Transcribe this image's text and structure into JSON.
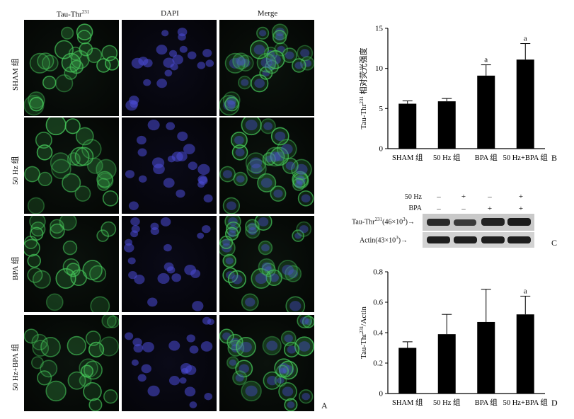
{
  "panel_a": {
    "columns": [
      {
        "main": "Tau-Thr",
        "sup": "231"
      },
      {
        "main": "DAPI",
        "sup": ""
      },
      {
        "main": "Merge",
        "sup": ""
      }
    ],
    "rows": [
      "SHAM 组",
      "50 Hz 组",
      "BPA 组",
      "50 Hz+BPA 组"
    ],
    "letter": "A",
    "stain_colors": {
      "tau": "#46c85a",
      "dapi": "#4a4ad6"
    }
  },
  "panel_c": {
    "letter": "C",
    "factor_rows": [
      {
        "label": "50 Hz",
        "signs": [
          "–",
          "+",
          "–",
          "+"
        ]
      },
      {
        "label": "BPA",
        "signs": [
          "–",
          "–",
          "+",
          "+"
        ]
      }
    ],
    "bands": [
      {
        "main": "Tau-Thr",
        "sup": "231",
        "rest": "(46×10",
        "sup2": "3",
        "end": ")→"
      },
      {
        "main": "Actin(43×10",
        "sup": "3",
        "rest": ")→",
        "sup2": "",
        "end": ""
      }
    ]
  },
  "chart_data": [
    {
      "type": "bar",
      "panel": "B",
      "categories": [
        "SHAM 组",
        "50 Hz 组",
        "BPA 组",
        "50 Hz+BPA 组"
      ],
      "values": [
        5.6,
        5.9,
        9.1,
        11.1
      ],
      "errors": [
        0.35,
        0.35,
        1.35,
        2.0
      ],
      "annotations": [
        "",
        "",
        "a",
        "a"
      ],
      "ylabel": {
        "main": "Tau-Thr",
        "sup": "231",
        "rest": " 相对荧光强度"
      },
      "ylim": [
        0,
        15
      ],
      "yticks": [
        0,
        5,
        10,
        15
      ],
      "color": "#000000"
    },
    {
      "type": "bar",
      "panel": "D",
      "categories": [
        "SHAM 组",
        "50 Hz 组",
        "BPA 组",
        "50 Hz+BPA 组"
      ],
      "values": [
        0.3,
        0.39,
        0.47,
        0.52
      ],
      "errors": [
        0.04,
        0.13,
        0.215,
        0.12
      ],
      "annotations": [
        "",
        "",
        "",
        "a"
      ],
      "ylabel": {
        "main": "Tau-Thr",
        "sup": "231",
        "rest": "/Actin"
      },
      "ylim": [
        0,
        0.8
      ],
      "yticks": [
        "0",
        "0.2",
        "0.4",
        "0.6",
        "0.8"
      ],
      "color": "#000000"
    }
  ]
}
